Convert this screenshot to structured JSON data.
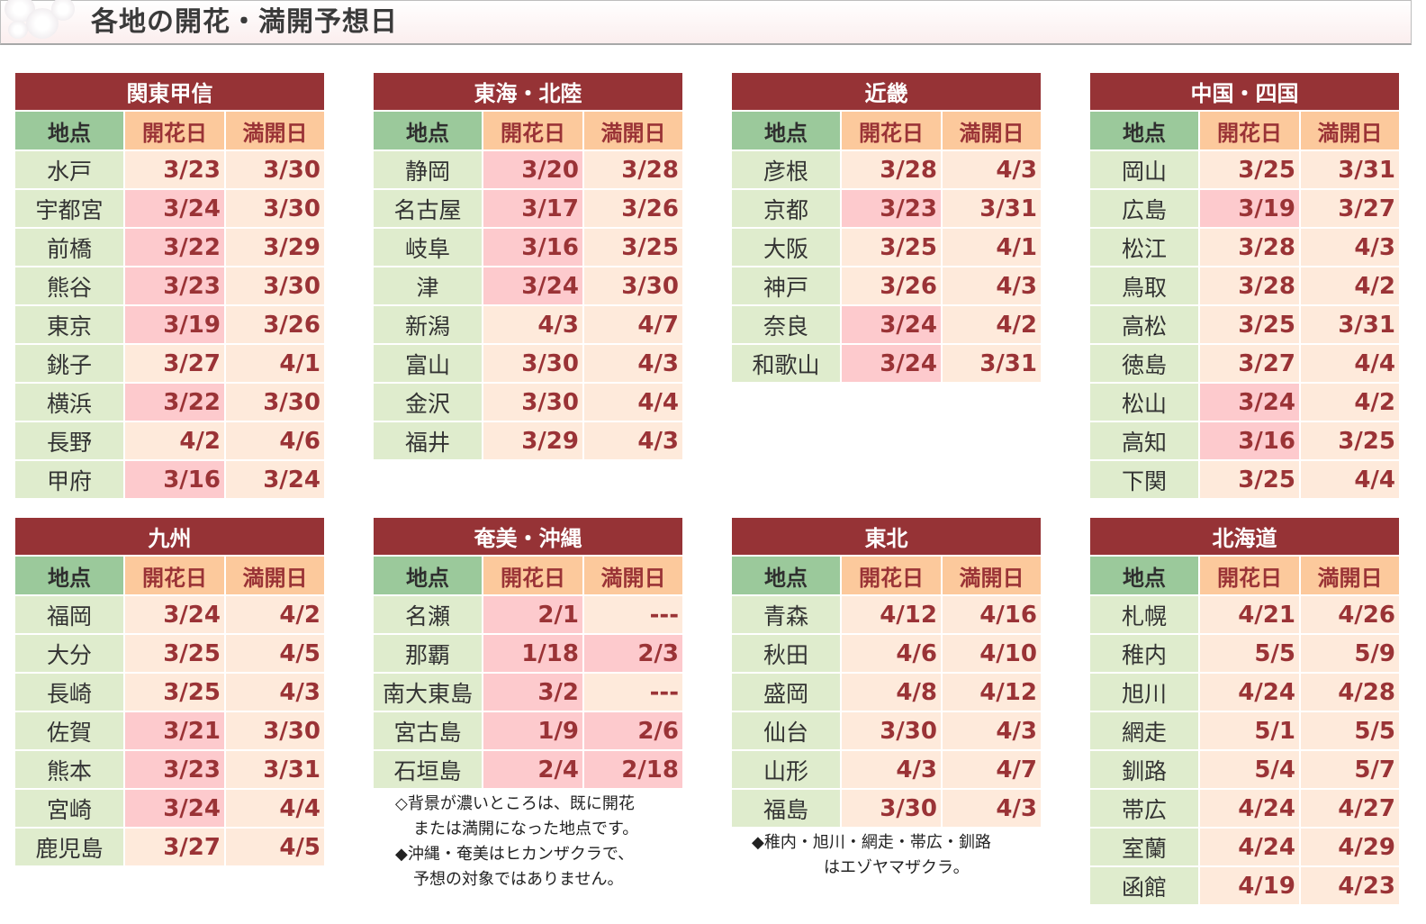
{
  "header": {
    "title": "各地の開花・満開予想日",
    "icon": "cherry-blossom-image"
  },
  "columns": {
    "location": "地点",
    "bloom": "開花日",
    "full": "満開日"
  },
  "colors": {
    "region_header": "#963336",
    "loc_header": "#9bc99b",
    "date_header": "#fcc99c",
    "loc_cell": "#dfeccd",
    "date_cell": "#feeadb",
    "date_cell_reached": "#fdcacd",
    "date_text": "#9a3336"
  },
  "regions": [
    {
      "name": "関東甲信",
      "rows": [
        {
          "loc": "水戸",
          "bloom": "3/23",
          "full": "3/30",
          "bh": false,
          "fh": false
        },
        {
          "loc": "宇都宮",
          "bloom": "3/24",
          "full": "3/30",
          "bh": true,
          "fh": false
        },
        {
          "loc": "前橋",
          "bloom": "3/22",
          "full": "3/29",
          "bh": true,
          "fh": false
        },
        {
          "loc": "熊谷",
          "bloom": "3/23",
          "full": "3/30",
          "bh": true,
          "fh": false
        },
        {
          "loc": "東京",
          "bloom": "3/19",
          "full": "3/26",
          "bh": true,
          "fh": false
        },
        {
          "loc": "銚子",
          "bloom": "3/27",
          "full": "4/1",
          "bh": false,
          "fh": false
        },
        {
          "loc": "横浜",
          "bloom": "3/22",
          "full": "3/30",
          "bh": true,
          "fh": false
        },
        {
          "loc": "長野",
          "bloom": "4/2",
          "full": "4/6",
          "bh": false,
          "fh": false
        },
        {
          "loc": "甲府",
          "bloom": "3/16",
          "full": "3/24",
          "bh": true,
          "fh": false
        }
      ]
    },
    {
      "name": "東海・北陸",
      "rows": [
        {
          "loc": "静岡",
          "bloom": "3/20",
          "full": "3/28",
          "bh": true,
          "fh": false
        },
        {
          "loc": "名古屋",
          "bloom": "3/17",
          "full": "3/26",
          "bh": true,
          "fh": false
        },
        {
          "loc": "岐阜",
          "bloom": "3/16",
          "full": "3/25",
          "bh": true,
          "fh": false
        },
        {
          "loc": "津",
          "bloom": "3/24",
          "full": "3/30",
          "bh": true,
          "fh": false
        },
        {
          "loc": "新潟",
          "bloom": "4/3",
          "full": "4/7",
          "bh": false,
          "fh": false
        },
        {
          "loc": "富山",
          "bloom": "3/30",
          "full": "4/3",
          "bh": false,
          "fh": false
        },
        {
          "loc": "金沢",
          "bloom": "3/30",
          "full": "4/4",
          "bh": false,
          "fh": false
        },
        {
          "loc": "福井",
          "bloom": "3/29",
          "full": "4/3",
          "bh": false,
          "fh": false
        }
      ]
    },
    {
      "name": "近畿",
      "rows": [
        {
          "loc": "彦根",
          "bloom": "3/28",
          "full": "4/3",
          "bh": false,
          "fh": false
        },
        {
          "loc": "京都",
          "bloom": "3/23",
          "full": "3/31",
          "bh": true,
          "fh": false
        },
        {
          "loc": "大阪",
          "bloom": "3/25",
          "full": "4/1",
          "bh": false,
          "fh": false
        },
        {
          "loc": "神戸",
          "bloom": "3/26",
          "full": "4/3",
          "bh": false,
          "fh": false
        },
        {
          "loc": "奈良",
          "bloom": "3/24",
          "full": "4/2",
          "bh": true,
          "fh": false
        },
        {
          "loc": "和歌山",
          "bloom": "3/24",
          "full": "3/31",
          "bh": true,
          "fh": false
        }
      ]
    },
    {
      "name": "中国・四国",
      "rows": [
        {
          "loc": "岡山",
          "bloom": "3/25",
          "full": "3/31",
          "bh": false,
          "fh": false
        },
        {
          "loc": "広島",
          "bloom": "3/19",
          "full": "3/27",
          "bh": true,
          "fh": false
        },
        {
          "loc": "松江",
          "bloom": "3/28",
          "full": "4/3",
          "bh": false,
          "fh": false
        },
        {
          "loc": "鳥取",
          "bloom": "3/28",
          "full": "4/2",
          "bh": false,
          "fh": false
        },
        {
          "loc": "高松",
          "bloom": "3/25",
          "full": "3/31",
          "bh": false,
          "fh": false
        },
        {
          "loc": "徳島",
          "bloom": "3/27",
          "full": "4/4",
          "bh": false,
          "fh": false
        },
        {
          "loc": "松山",
          "bloom": "3/24",
          "full": "4/2",
          "bh": true,
          "fh": false
        },
        {
          "loc": "高知",
          "bloom": "3/16",
          "full": "3/25",
          "bh": true,
          "fh": false
        },
        {
          "loc": "下関",
          "bloom": "3/25",
          "full": "4/4",
          "bh": false,
          "fh": false
        }
      ]
    },
    {
      "name": "九州",
      "rows": [
        {
          "loc": "福岡",
          "bloom": "3/24",
          "full": "4/2",
          "bh": false,
          "fh": false
        },
        {
          "loc": "大分",
          "bloom": "3/25",
          "full": "4/5",
          "bh": false,
          "fh": false
        },
        {
          "loc": "長崎",
          "bloom": "3/25",
          "full": "4/3",
          "bh": false,
          "fh": false
        },
        {
          "loc": "佐賀",
          "bloom": "3/21",
          "full": "3/30",
          "bh": true,
          "fh": false
        },
        {
          "loc": "熊本",
          "bloom": "3/23",
          "full": "3/31",
          "bh": true,
          "fh": false
        },
        {
          "loc": "宮崎",
          "bloom": "3/24",
          "full": "4/4",
          "bh": true,
          "fh": false
        },
        {
          "loc": "鹿児島",
          "bloom": "3/27",
          "full": "4/5",
          "bh": false,
          "fh": false
        }
      ]
    },
    {
      "name": "奄美・沖縄",
      "rows": [
        {
          "loc": "名瀬",
          "bloom": "2/1",
          "full": "---",
          "bh": true,
          "fh": false
        },
        {
          "loc": "那覇",
          "bloom": "1/18",
          "full": "2/3",
          "bh": true,
          "fh": true
        },
        {
          "loc": "南大東島",
          "bloom": "3/2",
          "full": "---",
          "bh": true,
          "fh": false
        },
        {
          "loc": "宮古島",
          "bloom": "1/9",
          "full": "2/6",
          "bh": true,
          "fh": true
        },
        {
          "loc": "石垣島",
          "bloom": "2/4",
          "full": "2/18",
          "bh": true,
          "fh": true
        }
      ],
      "notes": [
        "◇背景が濃いところは、既に開花",
        "または満開になった地点です。",
        "◆沖縄・奄美はヒカンザクラで、",
        "予想の対象ではありません。"
      ]
    },
    {
      "name": "東北",
      "rows": [
        {
          "loc": "青森",
          "bloom": "4/12",
          "full": "4/16",
          "bh": false,
          "fh": false
        },
        {
          "loc": "秋田",
          "bloom": "4/6",
          "full": "4/10",
          "bh": false,
          "fh": false
        },
        {
          "loc": "盛岡",
          "bloom": "4/8",
          "full": "4/12",
          "bh": false,
          "fh": false
        },
        {
          "loc": "仙台",
          "bloom": "3/30",
          "full": "4/3",
          "bh": false,
          "fh": false
        },
        {
          "loc": "山形",
          "bloom": "4/3",
          "full": "4/7",
          "bh": false,
          "fh": false
        },
        {
          "loc": "福島",
          "bloom": "3/30",
          "full": "4/3",
          "bh": false,
          "fh": false
        }
      ],
      "notes": [
        "◆稚内・旭川・網走・帯広・釧路",
        "はエゾヤマザクラ。"
      ]
    },
    {
      "name": "北海道",
      "rows": [
        {
          "loc": "札幌",
          "bloom": "4/21",
          "full": "4/26",
          "bh": false,
          "fh": false
        },
        {
          "loc": "稚内",
          "bloom": "5/5",
          "full": "5/9",
          "bh": false,
          "fh": false
        },
        {
          "loc": "旭川",
          "bloom": "4/24",
          "full": "4/28",
          "bh": false,
          "fh": false
        },
        {
          "loc": "網走",
          "bloom": "5/1",
          "full": "5/5",
          "bh": false,
          "fh": false
        },
        {
          "loc": "釧路",
          "bloom": "5/4",
          "full": "5/7",
          "bh": false,
          "fh": false
        },
        {
          "loc": "帯広",
          "bloom": "4/24",
          "full": "4/27",
          "bh": false,
          "fh": false
        },
        {
          "loc": "室蘭",
          "bloom": "4/24",
          "full": "4/29",
          "bh": false,
          "fh": false
        },
        {
          "loc": "函館",
          "bloom": "4/19",
          "full": "4/23",
          "bh": false,
          "fh": false
        }
      ]
    }
  ]
}
